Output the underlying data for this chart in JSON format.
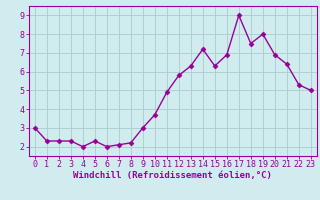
{
  "x": [
    0,
    1,
    2,
    3,
    4,
    5,
    6,
    7,
    8,
    9,
    10,
    11,
    12,
    13,
    14,
    15,
    16,
    17,
    18,
    19,
    20,
    21,
    22,
    23
  ],
  "y": [
    3.0,
    2.3,
    2.3,
    2.3,
    2.0,
    2.3,
    2.0,
    2.1,
    2.2,
    3.0,
    3.7,
    4.9,
    5.8,
    6.3,
    7.2,
    6.3,
    6.9,
    9.0,
    7.5,
    8.0,
    6.9,
    6.4,
    5.3,
    5.0
  ],
  "line_color": "#990099",
  "marker": "D",
  "marker_size": 2.5,
  "bg_color": "#d0ecef",
  "grid_color": "#aacccc",
  "xlabel": "Windchill (Refroidissement éolien,°C)",
  "ylabel_ticks": [
    "2",
    "3",
    "4",
    "5",
    "6",
    "7",
    "8",
    "9"
  ],
  "yticks": [
    2,
    3,
    4,
    5,
    6,
    7,
    8,
    9
  ],
  "ylim": [
    1.5,
    9.5
  ],
  "xlim": [
    -0.5,
    23.5
  ],
  "xlabel_fontsize": 6.5,
  "tick_fontsize": 6.0,
  "line_width": 1.0
}
